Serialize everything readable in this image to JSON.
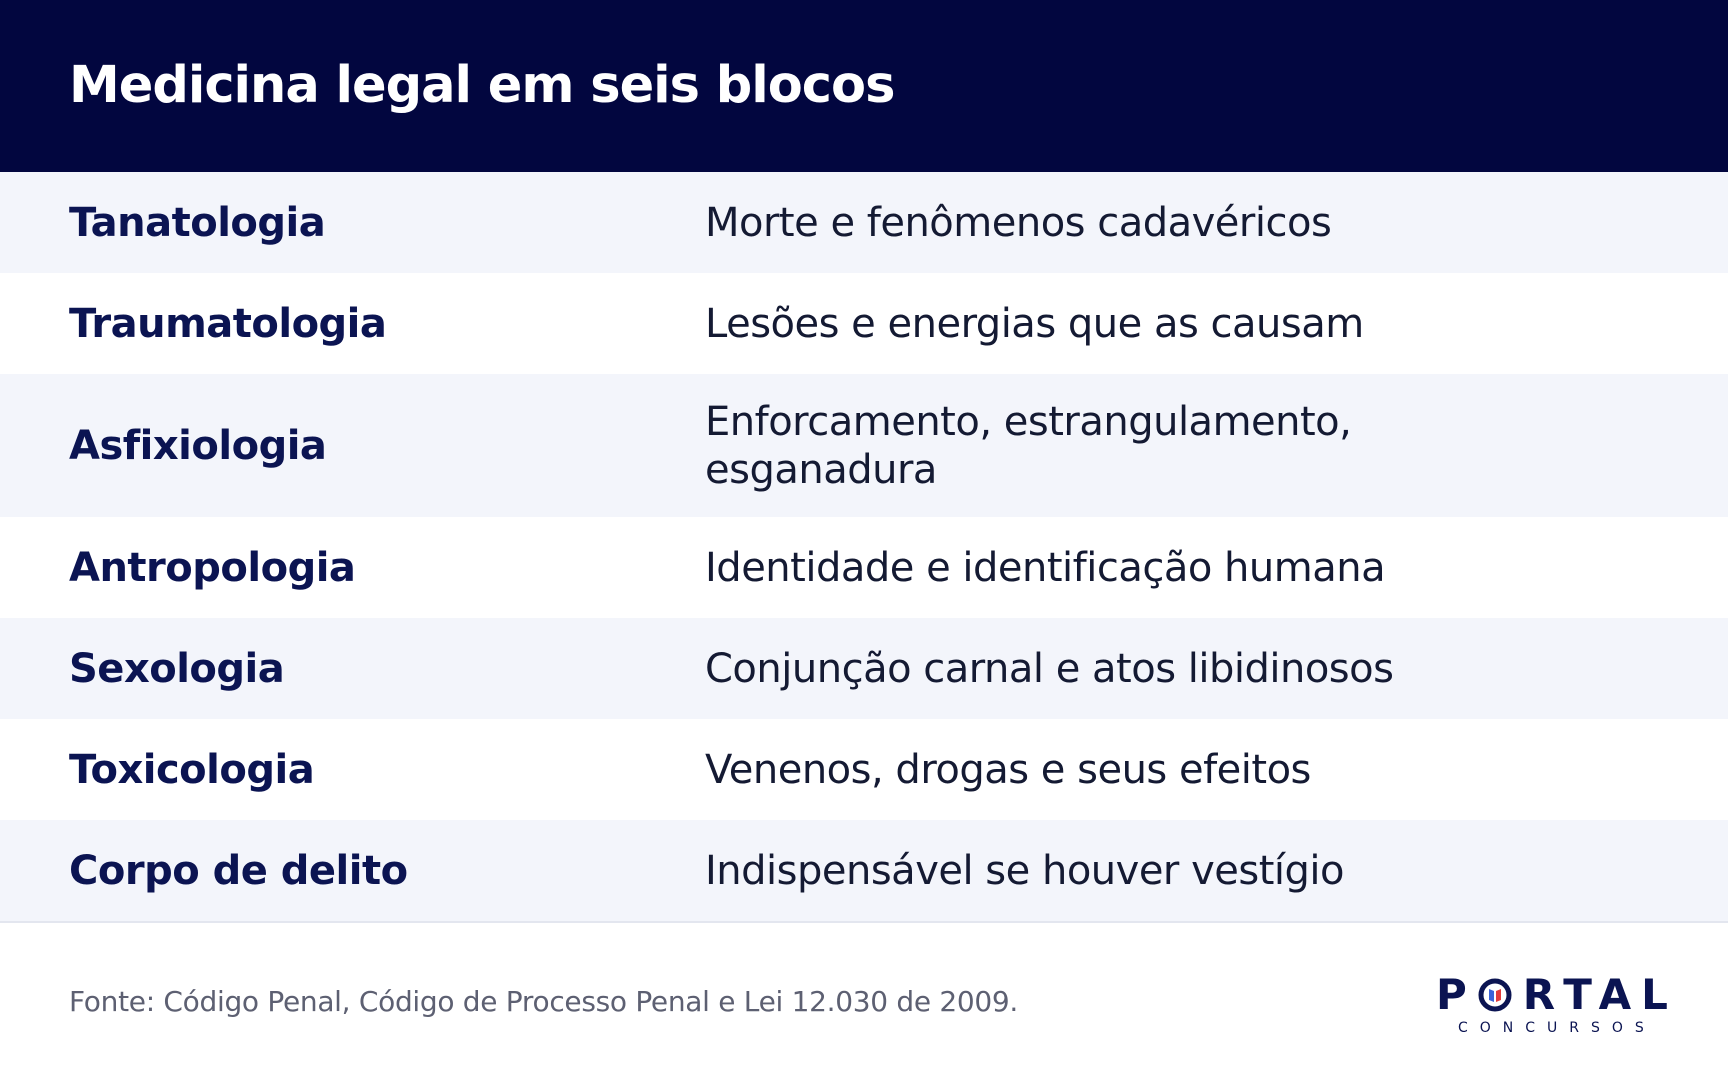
{
  "header": {
    "title": "Medicina legal em seis blocos"
  },
  "rows": [
    {
      "term": "Tanatologia",
      "description": "Morte e fenômenos cadavéricos"
    },
    {
      "term": "Traumatologia",
      "description": "Lesões e energias que as causam"
    },
    {
      "term": "Asfixiologia",
      "description": "Enforcamento, estrangulamento, esganadura"
    },
    {
      "term": "Antropologia",
      "description": "Identidade e identificação humana"
    },
    {
      "term": "Sexologia",
      "description": "Conjunção carnal e atos libidinosos"
    },
    {
      "term": "Toxicologia",
      "description": "Venenos, drogas e seus efeitos"
    },
    {
      "term": "Corpo de delito",
      "description": "Indispensável se houver vestígio"
    }
  ],
  "footer": {
    "source": "Fonte: Código Penal, Código de Processo Penal e Lei 12.030 de 2009.",
    "logo": {
      "word_left": "P",
      "word_right": "RTAL",
      "subtitle": "CONCURSOS",
      "icon": "portal-o-icon"
    }
  },
  "colors": {
    "header_bg": "#02063f",
    "term_text": "#0b1452",
    "row_alt_bg": "#f3f5fb",
    "logo_accent_blue": "#3a63d8",
    "logo_accent_red": "#e23b3b"
  }
}
